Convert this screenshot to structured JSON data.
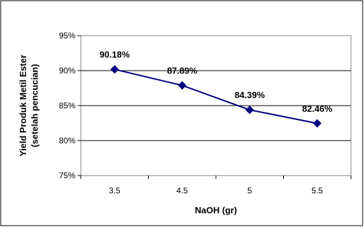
{
  "chart_data": {
    "type": "line",
    "title": "",
    "xlabel": "NaOH (gr)",
    "ylabel_lines": [
      "Yield Produk  Metil Ester",
      "(setelah pencucian)"
    ],
    "categories": [
      "3.5",
      "4.5",
      "5",
      "5.5"
    ],
    "series": [
      {
        "values": [
          90.18,
          87.89,
          84.39,
          82.46
        ],
        "data_labels": [
          "90.18%",
          "87.89%",
          "84.39%",
          "82.46%"
        ],
        "color": "#000080",
        "marker": "diamond"
      }
    ],
    "ylim": [
      75,
      95
    ],
    "yticks": [
      75,
      80,
      85,
      90,
      95
    ],
    "ytick_labels": [
      "75%",
      "80%",
      "85%",
      "90%",
      "95%"
    ],
    "grid": true,
    "legend": "none"
  }
}
